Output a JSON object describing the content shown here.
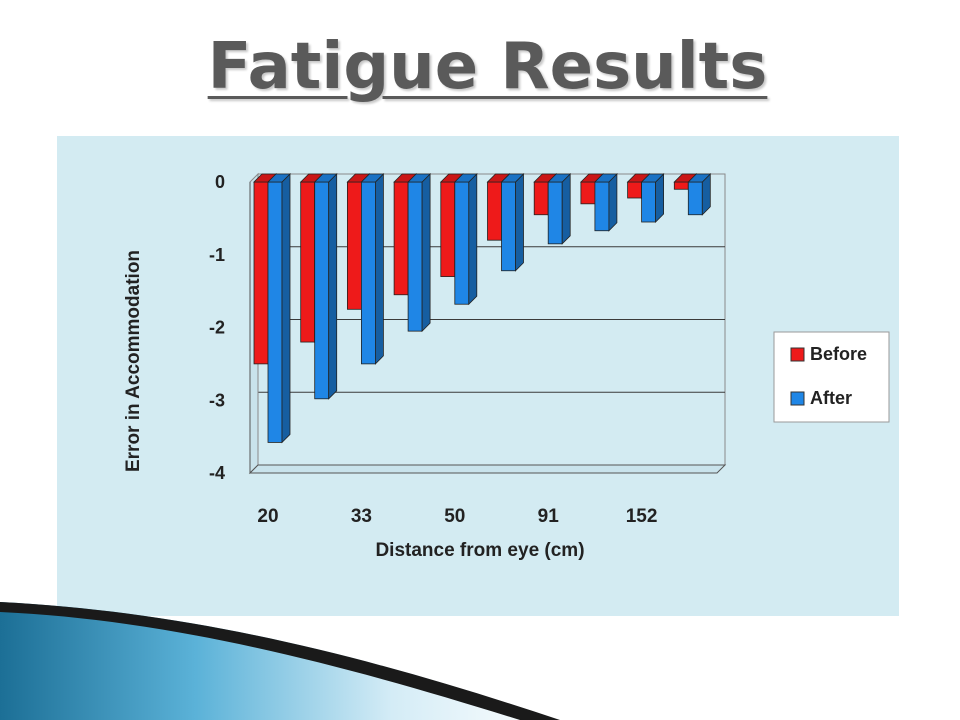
{
  "slide": {
    "title": "Fatigue Results"
  },
  "colors": {
    "before": "#ee1a1a",
    "after": "#1f86e6",
    "panel": "#d3ebf2",
    "title": "#5a5a5a"
  },
  "chart_data": {
    "type": "bar",
    "title": "",
    "xlabel": "Distance from eye (cm)",
    "ylabel": "Error in Accommodation",
    "tick_labels_x": [
      "20",
      "33",
      "50",
      "91",
      "152"
    ],
    "ylim": [
      -4,
      0
    ],
    "yticks": [
      0,
      -1,
      -2,
      -3,
      -4
    ],
    "grid": true,
    "legend_position": "right",
    "series": [
      {
        "name": "Before",
        "values": [
          -2.5,
          -2.2,
          -1.75,
          -1.55,
          -1.3,
          -0.8,
          -0.45,
          -0.3,
          -0.22,
          -0.1
        ]
      },
      {
        "name": "After",
        "values": [
          -3.58,
          -2.98,
          -2.5,
          -2.05,
          -1.68,
          -1.22,
          -0.85,
          -0.67,
          -0.55,
          -0.45
        ]
      }
    ]
  }
}
